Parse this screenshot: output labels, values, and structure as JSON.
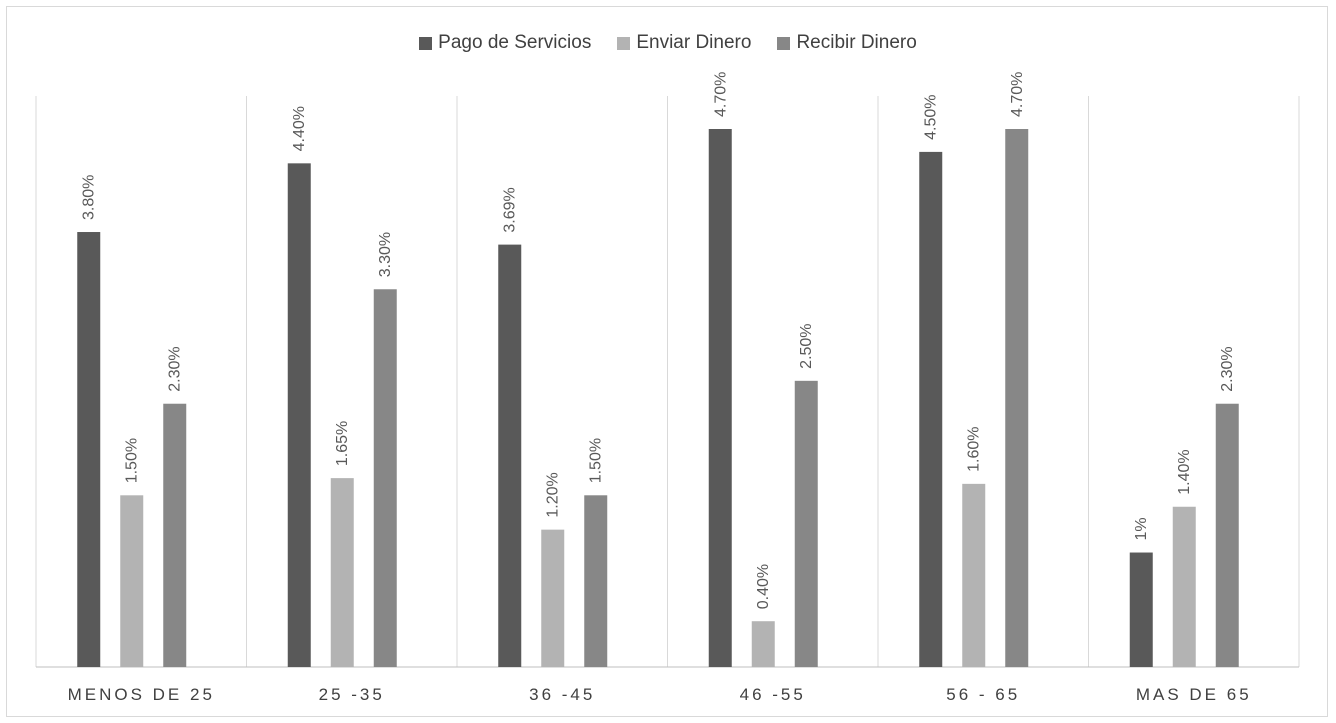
{
  "chart_data": {
    "type": "bar",
    "title": "",
    "xlabel": "",
    "ylabel": "",
    "ylim": [
      0,
      5.0
    ],
    "grid": false,
    "legend_placement": "top-center",
    "categories": [
      "MENOS DE 25",
      "25 -35",
      "36 -45",
      "46 -55",
      "56 - 65",
      "MAS DE 65"
    ],
    "series": [
      {
        "name": "Pago de Servicios",
        "color": "#595959",
        "values": [
          3.8,
          4.4,
          3.69,
          4.7,
          4.5,
          1.0
        ],
        "labels": [
          "3.80%",
          "4.40%",
          "3.69%",
          "4.70%",
          "4.50%",
          "1%"
        ]
      },
      {
        "name": "Enviar Dinero",
        "color": "#b3b3b3",
        "values": [
          1.5,
          1.65,
          1.2,
          0.4,
          1.6,
          1.4
        ],
        "labels": [
          "1.50%",
          "1.65%",
          "1.20%",
          "0.40%",
          "1.60%",
          "1.40%"
        ]
      },
      {
        "name": "Recibir Dinero",
        "color": "#878787",
        "values": [
          2.3,
          3.3,
          1.5,
          2.5,
          4.7,
          2.3
        ],
        "labels": [
          "2.30%",
          "3.30%",
          "1.50%",
          "2.50%",
          "4.70%",
          "2.30%"
        ]
      }
    ]
  }
}
